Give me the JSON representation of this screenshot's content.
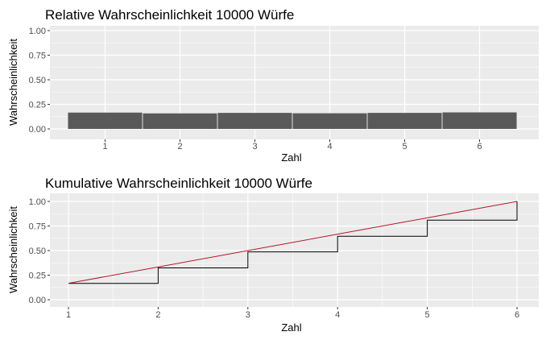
{
  "chart_data": [
    {
      "type": "bar",
      "title": "Relative Wahrscheinlichkeit 10000 Würfe",
      "xlabel": "Zahl",
      "ylabel": "Wahrscheinlichkeit",
      "categories": [
        "1",
        "2",
        "3",
        "4",
        "5",
        "6"
      ],
      "values": [
        0.166,
        0.158,
        0.163,
        0.159,
        0.163,
        0.168
      ],
      "ylim": [
        0,
        1
      ],
      "yticks": [
        "0.00",
        "0.25",
        "0.50",
        "0.75",
        "1.00"
      ],
      "grid": true,
      "colors": {
        "panel": "#ebebeb",
        "grid": "#ffffff",
        "bar": "#595959"
      }
    },
    {
      "type": "line",
      "title": "Kumulative Wahrscheinlichkeit 10000 Würfe",
      "xlabel": "Zahl",
      "ylabel": "Wahrscheinlichkeit",
      "x": [
        1,
        2,
        3,
        4,
        5,
        6
      ],
      "xticks": [
        "1",
        "2",
        "3",
        "4",
        "5",
        "6"
      ],
      "xlim": [
        1,
        6
      ],
      "ylim": [
        0,
        1
      ],
      "yticks": [
        "0.00",
        "0.25",
        "0.50",
        "0.75",
        "1.00"
      ],
      "grid": true,
      "series": [
        {
          "values": [
            0.166,
            0.324,
            0.487,
            0.646,
            0.809,
            1.0
          ],
          "style": "step",
          "color": "#000000"
        },
        {
          "values": [
            0.1667,
            0.3333,
            0.5,
            0.6667,
            0.8333,
            1.0
          ],
          "style": "line",
          "color": "#b2182b"
        }
      ],
      "colors": {
        "panel": "#ebebeb",
        "grid": "#ffffff"
      }
    }
  ]
}
